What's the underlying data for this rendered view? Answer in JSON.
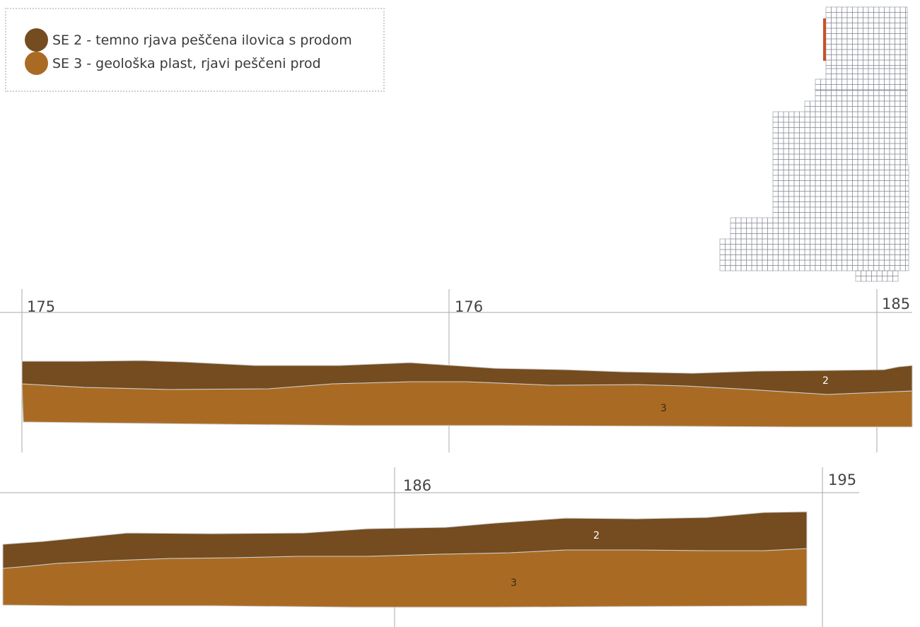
{
  "legend": {
    "items": [
      {
        "label": "SE 2 - temno rjava peščena ilovica s prodom",
        "color": "#744c1f"
      },
      {
        "label": "SE 3 - geološka plast, rjavi peščeni prod",
        "color": "#a96b24"
      }
    ]
  },
  "colors": {
    "se2": "#744c1f",
    "se3": "#a96b24",
    "gridline": "#a9a9a9",
    "profile_marker": "#c8512a"
  },
  "profiles": [
    {
      "ticks": [
        "175",
        "176",
        "185"
      ],
      "layer_labels": [
        "2",
        "3"
      ]
    },
    {
      "ticks": [
        "186",
        "195"
      ],
      "layer_labels": [
        "2",
        "3"
      ]
    }
  ]
}
